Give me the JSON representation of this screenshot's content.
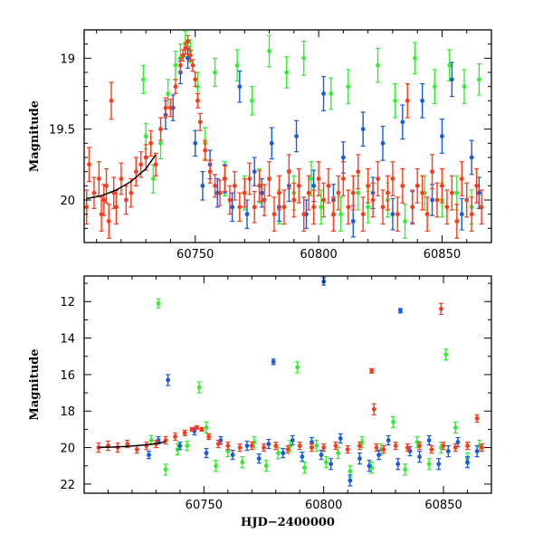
{
  "chart_data": [
    {
      "type": "scatter",
      "panel": "top",
      "title": "",
      "xlabel": "",
      "ylabel": "Magnitude",
      "xlim": [
        60705,
        60870
      ],
      "ylim": [
        20.3,
        18.8
      ],
      "y_inverted": true,
      "xticks": [
        60750,
        60800,
        60850
      ],
      "xtick_labels": [
        "60750",
        "60800",
        "60850"
      ],
      "yticks": [
        19,
        19.5,
        20
      ],
      "ytick_labels": [
        "19",
        "19.5",
        "20"
      ],
      "grid": false,
      "legend": "none",
      "series": [
        {
          "color": "#33ee33",
          "x": [
            60729,
            60730,
            60733,
            60736,
            60739,
            60742,
            60744,
            60746,
            60748,
            60751,
            60754,
            60758,
            60762,
            60767,
            60770,
            60773,
            60776,
            60780,
            60784,
            60787,
            60790,
            60794,
            60797,
            60801,
            60805,
            60809,
            60812,
            60816,
            60820,
            60824,
            60828,
            60831,
            60835,
            60839,
            60843,
            60847,
            60850,
            60853,
            60856,
            60859,
            60862,
            60865
          ],
          "y": [
            19.15,
            19.55,
            19.85,
            19.6,
            19.25,
            19.05,
            19.0,
            18.9,
            18.95,
            19.2,
            19.6,
            19.1,
            19.85,
            19.05,
            19.95,
            19.3,
            19.9,
            18.95,
            20.05,
            19.1,
            19.95,
            19.0,
            19.85,
            20.05,
            19.25,
            20.1,
            19.2,
            19.95,
            20.05,
            19.05,
            20.0,
            19.3,
            20.15,
            19.0,
            19.95,
            19.2,
            20.0,
            19.05,
            19.95,
            19.2,
            20.05,
            19.15
          ],
          "err": [
            0.1,
            0.09,
            0.1,
            0.11,
            0.1,
            0.1,
            0.1,
            0.09,
            0.08,
            0.1,
            0.11,
            0.1,
            0.12,
            0.11,
            0.12,
            0.1,
            0.12,
            0.11,
            0.12,
            0.11,
            0.12,
            0.12,
            0.12,
            0.12,
            0.11,
            0.12,
            0.12,
            0.12,
            0.11,
            0.12,
            0.12,
            0.12,
            0.12,
            0.11,
            0.12,
            0.12,
            0.12,
            0.11,
            0.12,
            0.12,
            0.12,
            0.11
          ]
        },
        {
          "color": "#1a5adf",
          "x": [
            60738,
            60741,
            60744,
            60747,
            60750,
            60753,
            60756,
            60759,
            60762,
            60765,
            60768,
            60771,
            60774,
            60777,
            60781,
            60784,
            60788,
            60791,
            60795,
            60798,
            60802,
            60806,
            60810,
            60814,
            60818,
            60822,
            60826,
            60830,
            60834,
            60838,
            60842,
            60846,
            60850,
            60854,
            60858,
            60862,
            60865
          ],
          "y": [
            19.4,
            19.35,
            19.1,
            19.0,
            19.6,
            19.9,
            19.75,
            19.95,
            19.85,
            20.05,
            19.2,
            20.1,
            19.8,
            19.95,
            19.6,
            20.05,
            19.9,
            19.55,
            20.1,
            19.9,
            19.25,
            20.0,
            19.7,
            20.15,
            19.5,
            19.95,
            19.6,
            20.1,
            19.45,
            20.05,
            19.3,
            20.0,
            19.55,
            19.15,
            20.1,
            19.7,
            19.95
          ],
          "err": [
            0.1,
            0.09,
            0.08,
            0.07,
            0.09,
            0.1,
            0.1,
            0.1,
            0.1,
            0.1,
            0.11,
            0.1,
            0.1,
            0.1,
            0.11,
            0.1,
            0.11,
            0.11,
            0.1,
            0.11,
            0.12,
            0.11,
            0.11,
            0.11,
            0.12,
            0.11,
            0.12,
            0.11,
            0.12,
            0.11,
            0.12,
            0.11,
            0.12,
            0.12,
            0.11,
            0.12,
            0.11
          ]
        },
        {
          "color": "#ff3a1a",
          "x": [
            60706,
            60707,
            60709,
            60711,
            60712,
            60713,
            60714,
            60715,
            60716,
            60717,
            60718,
            60720,
            60722,
            60724,
            60726,
            60728,
            60730,
            60732,
            60734,
            60736,
            60738,
            60740,
            60742,
            60744,
            60745,
            60746,
            60747,
            60748,
            60749,
            60750,
            60751,
            60752,
            60754,
            60756,
            60758,
            60760,
            60762,
            60764,
            60766,
            60768,
            60770,
            60772,
            60774,
            60776,
            60778,
            60780,
            60782,
            60784,
            60786,
            60788,
            60790,
            60792,
            60794,
            60796,
            60798,
            60800,
            60802,
            60804,
            60806,
            60808,
            60810,
            60812,
            60814,
            60816,
            60818,
            60820,
            60822,
            60824,
            60826,
            60828,
            60830,
            60832,
            60834,
            60836,
            60838,
            60840,
            60842,
            60844,
            60846,
            60848,
            60850,
            60852,
            60854,
            60856,
            60858,
            60860,
            60862,
            60864,
            60866
          ],
          "y": [
            20.05,
            19.75,
            19.95,
            19.85,
            20.1,
            20.0,
            19.9,
            20.15,
            19.3,
            19.95,
            20.05,
            19.85,
            20.0,
            19.95,
            19.8,
            19.75,
            19.7,
            19.6,
            19.75,
            19.5,
            19.35,
            19.35,
            19.2,
            19.05,
            18.98,
            18.93,
            18.88,
            18.98,
            19.05,
            19.15,
            19.3,
            19.45,
            19.65,
            19.8,
            19.9,
            19.95,
            19.85,
            20.0,
            19.9,
            20.05,
            19.95,
            19.85,
            20.05,
            19.9,
            20.0,
            19.85,
            20.1,
            19.95,
            20.05,
            19.8,
            20.0,
            19.9,
            20.1,
            19.95,
            20.05,
            19.85,
            20.0,
            19.9,
            20.1,
            19.95,
            19.85,
            20.05,
            19.95,
            19.8,
            20.1,
            19.9,
            20.0,
            19.85,
            20.05,
            19.95,
            19.85,
            20.1,
            19.9,
            19.3,
            20.05,
            19.9,
            19.95,
            20.1,
            19.8,
            20.0,
            19.9,
            20.05,
            19.95,
            20.15,
            19.85,
            20.0,
            20.1,
            19.9,
            20.05
          ],
          "err": [
            0.12,
            0.12,
            0.11,
            0.12,
            0.12,
            0.11,
            0.12,
            0.12,
            0.13,
            0.11,
            0.12,
            0.11,
            0.1,
            0.1,
            0.1,
            0.09,
            0.09,
            0.09,
            0.08,
            0.08,
            0.07,
            0.06,
            0.05,
            0.05,
            0.04,
            0.04,
            0.04,
            0.04,
            0.04,
            0.05,
            0.05,
            0.06,
            0.07,
            0.08,
            0.08,
            0.09,
            0.09,
            0.1,
            0.1,
            0.1,
            0.1,
            0.11,
            0.11,
            0.11,
            0.11,
            0.12,
            0.12,
            0.12,
            0.12,
            0.12,
            0.12,
            0.12,
            0.12,
            0.12,
            0.12,
            0.12,
            0.12,
            0.12,
            0.12,
            0.12,
            0.12,
            0.12,
            0.12,
            0.12,
            0.12,
            0.12,
            0.12,
            0.12,
            0.12,
            0.12,
            0.12,
            0.12,
            0.12,
            0.12,
            0.12,
            0.12,
            0.12,
            0.12,
            0.12,
            0.12,
            0.12,
            0.12,
            0.12,
            0.12,
            0.12,
            0.12,
            0.12,
            0.12,
            0.12
          ]
        }
      ],
      "model_curve": {
        "color": "#000000",
        "x": [
          60706,
          60712,
          60718,
          60724,
          60730,
          60734
        ],
        "y": [
          19.99,
          19.97,
          19.93,
          19.87,
          19.78,
          19.68
        ]
      }
    },
    {
      "type": "scatter",
      "panel": "bottom",
      "title": "",
      "xlabel": "HJD−2400000",
      "ylabel": "Magnitude",
      "xlim": [
        60700,
        60870
      ],
      "ylim": [
        22.5,
        10.6
      ],
      "y_inverted": true,
      "xticks": [
        60750,
        60800,
        60850
      ],
      "xtick_labels": [
        "60750",
        "60800",
        "60850"
      ],
      "yticks": [
        12,
        14,
        16,
        18,
        20,
        22
      ],
      "ytick_labels": [
        "12",
        "14",
        "16",
        "18",
        "20",
        "22"
      ],
      "grid": false,
      "legend": "none",
      "series": [
        {
          "color": "#33ee33",
          "x": [
            60728,
            60731,
            60734,
            60739,
            60743,
            60748,
            60751,
            60755,
            60760,
            60766,
            60771,
            60776,
            60781,
            60786,
            60789,
            60792,
            60797,
            60801,
            60806,
            60811,
            60816,
            60820,
            60824,
            60829,
            60834,
            60839,
            60844,
            60849,
            60851,
            60855,
            60860,
            60865
          ],
          "y": [
            19.6,
            12.1,
            21.2,
            20.1,
            19.9,
            16.7,
            18.9,
            21.0,
            20.2,
            20.8,
            19.7,
            21.0,
            20.3,
            19.9,
            15.6,
            21.1,
            19.9,
            20.8,
            20.3,
            21.3,
            19.7,
            21.1,
            20.1,
            18.6,
            21.2,
            19.7,
            20.9,
            20.0,
            14.9,
            18.9,
            20.6,
            19.9
          ],
          "err": [
            0.25,
            0.25,
            0.3,
            0.3,
            0.25,
            0.3,
            0.3,
            0.3,
            0.3,
            0.3,
            0.3,
            0.3,
            0.3,
            0.3,
            0.3,
            0.3,
            0.3,
            0.3,
            0.3,
            0.3,
            0.3,
            0.3,
            0.3,
            0.3,
            0.3,
            0.3,
            0.3,
            0.3,
            0.3,
            0.3,
            0.3,
            0.3
          ]
        },
        {
          "color": "#1a5adf",
          "x": [
            60727,
            60731,
            60735,
            60740,
            60746,
            60751,
            60757,
            60762,
            60768,
            60773,
            60777,
            60779,
            60783,
            60787,
            60791,
            60795,
            60799,
            60800,
            60803,
            60807,
            60811,
            60815,
            60819,
            60823,
            60827,
            60831,
            60832,
            60836,
            60840,
            60844,
            60848,
            60852,
            60856,
            60860,
            60864
          ],
          "y": [
            20.4,
            19.6,
            16.3,
            19.9,
            19.1,
            20.3,
            19.6,
            20.4,
            19.9,
            20.6,
            19.8,
            15.3,
            20.3,
            19.6,
            20.5,
            19.7,
            20.4,
            10.9,
            20.9,
            19.5,
            21.8,
            20.6,
            21.0,
            20.4,
            19.6,
            20.9,
            12.5,
            20.2,
            20.5,
            19.6,
            20.9,
            20.2,
            19.7,
            20.8,
            20.2
          ],
          "err": [
            0.2,
            0.2,
            0.3,
            0.2,
            0.2,
            0.25,
            0.2,
            0.25,
            0.25,
            0.25,
            0.25,
            0.15,
            0.25,
            0.25,
            0.25,
            0.25,
            0.25,
            0.2,
            0.3,
            0.25,
            0.3,
            0.3,
            0.3,
            0.25,
            0.25,
            0.3,
            0.12,
            0.25,
            0.3,
            0.25,
            0.3,
            0.3,
            0.25,
            0.3,
            0.3
          ]
        },
        {
          "color": "#ff3a1a",
          "x": [
            60706,
            60710,
            60714,
            60718,
            60722,
            60726,
            60730,
            60734,
            60738,
            60742,
            60745,
            60747,
            60749,
            60752,
            60756,
            60760,
            60765,
            60770,
            60775,
            60780,
            60785,
            60790,
            60795,
            60800,
            60805,
            60810,
            60815,
            60820,
            60821,
            60822,
            60825,
            60830,
            60835,
            60840,
            60845,
            60849,
            60850,
            60855,
            60860,
            60864,
            60866
          ],
          "y": [
            20.0,
            19.9,
            20.0,
            19.8,
            20.1,
            19.9,
            19.8,
            19.6,
            19.4,
            19.2,
            19.0,
            18.9,
            19.0,
            19.4,
            19.8,
            19.9,
            20.0,
            19.9,
            20.0,
            19.9,
            20.1,
            19.9,
            20.0,
            20.0,
            19.9,
            20.1,
            19.9,
            15.8,
            17.9,
            20.0,
            20.1,
            19.9,
            20.0,
            19.9,
            20.1,
            12.4,
            19.9,
            20.0,
            19.9,
            18.4,
            20.0
          ],
          "err": [
            0.25,
            0.25,
            0.25,
            0.2,
            0.2,
            0.2,
            0.2,
            0.2,
            0.2,
            0.15,
            0.1,
            0.1,
            0.1,
            0.15,
            0.2,
            0.2,
            0.2,
            0.2,
            0.2,
            0.2,
            0.2,
            0.2,
            0.2,
            0.2,
            0.2,
            0.2,
            0.2,
            0.12,
            0.3,
            0.2,
            0.2,
            0.2,
            0.2,
            0.2,
            0.2,
            0.3,
            0.2,
            0.2,
            0.2,
            0.2,
            0.2
          ]
        }
      ],
      "model_curve": {
        "color": "#000000",
        "x": [
          60706,
          60712,
          60718,
          60724,
          60730,
          60734
        ],
        "y": [
          19.99,
          19.97,
          19.93,
          19.87,
          19.78,
          19.68
        ]
      }
    }
  ]
}
